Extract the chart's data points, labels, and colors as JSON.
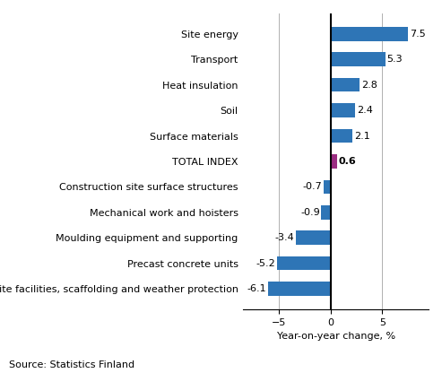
{
  "categories": [
    "Site facilities, scaffolding and weather protection",
    "Precast concrete units",
    "Moulding equipment and supporting",
    "Mechanical work and hoisters",
    "Construction site surface structures",
    "TOTAL INDEX",
    "Surface materials",
    "Soil",
    "Heat insulation",
    "Transport",
    "Site energy"
  ],
  "values": [
    -6.1,
    -5.2,
    -3.4,
    -0.9,
    -0.7,
    0.6,
    2.1,
    2.4,
    2.8,
    5.3,
    7.5
  ],
  "bar_colors": [
    "#2E75B6",
    "#2E75B6",
    "#2E75B6",
    "#2E75B6",
    "#2E75B6",
    "#9B2D82",
    "#2E75B6",
    "#2E75B6",
    "#2E75B6",
    "#2E75B6",
    "#2E75B6"
  ],
  "xlabel": "Year-on-year change, %",
  "xlim": [
    -8.5,
    9.5
  ],
  "xticks": [
    -5,
    0,
    5
  ],
  "source_text": "Source: Statistics Finland",
  "label_fontsize": 8,
  "ytick_fontsize": 8,
  "xtick_fontsize": 8,
  "background_color": "#ffffff",
  "grid_color": "#b0b0b0"
}
